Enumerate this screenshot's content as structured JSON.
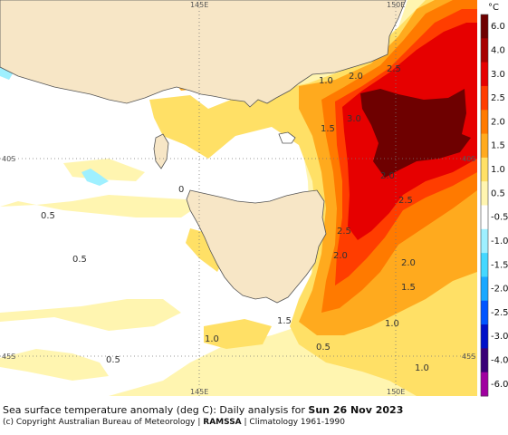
{
  "map": {
    "grid_labels": {
      "lon_145": "145E",
      "lon_150": "150E",
      "lat_40": "40S",
      "lat_45": "45S"
    },
    "contour_labels": [
      "0.5",
      "0.5",
      "1.0",
      "1.5",
      "2.0",
      "2.5",
      "3.0",
      "2.0",
      "2.5",
      "2.0",
      "1.5",
      "2.0",
      "2.5",
      "1.5",
      "1.0",
      "1.0",
      "1.5",
      "1.0",
      "0.5",
      "0.5",
      "1.0",
      "0"
    ]
  },
  "legend": {
    "unit": "°C",
    "entries": [
      {
        "label": "6.0",
        "color": "#6e0000"
      },
      {
        "label": "4.0",
        "color": "#a80000"
      },
      {
        "label": "3.0",
        "color": "#e60000"
      },
      {
        "label": "2.5",
        "color": "#ff3d00"
      },
      {
        "label": "2.0",
        "color": "#ff7a00"
      },
      {
        "label": "1.5",
        "color": "#ffaa1e"
      },
      {
        "label": "1.0",
        "color": "#ffe066"
      },
      {
        "label": "0.5",
        "color": "#fff5b0"
      },
      {
        "label": "-0.5",
        "color": "#ffffff"
      },
      {
        "label": "-1.0",
        "color": "#9ff0ff"
      },
      {
        "label": "-1.5",
        "color": "#44d8ff"
      },
      {
        "label": "-2.0",
        "color": "#1aa8ff"
      },
      {
        "label": "-2.5",
        "color": "#0055ff"
      },
      {
        "label": "-3.0",
        "color": "#0010c8"
      },
      {
        "label": "-4.0",
        "color": "#3a0078"
      },
      {
        "label": "-6.0",
        "color": "#a000a0"
      }
    ]
  },
  "caption": {
    "line1_prefix": "Sea surface temperature anomaly (deg C): Daily analysis for ",
    "line1_date": "Sun 26 Nov 2023",
    "line2_prefix": "(c) Copyright Australian Bureau of Meteorology | ",
    "line2_bold": "RAMSSA",
    "line2_suffix": " | Climatology 1961-1990"
  },
  "colors": {
    "land": "#f7e6c6",
    "ocean_neutral": "#ffffff",
    "coast": "#555555"
  }
}
